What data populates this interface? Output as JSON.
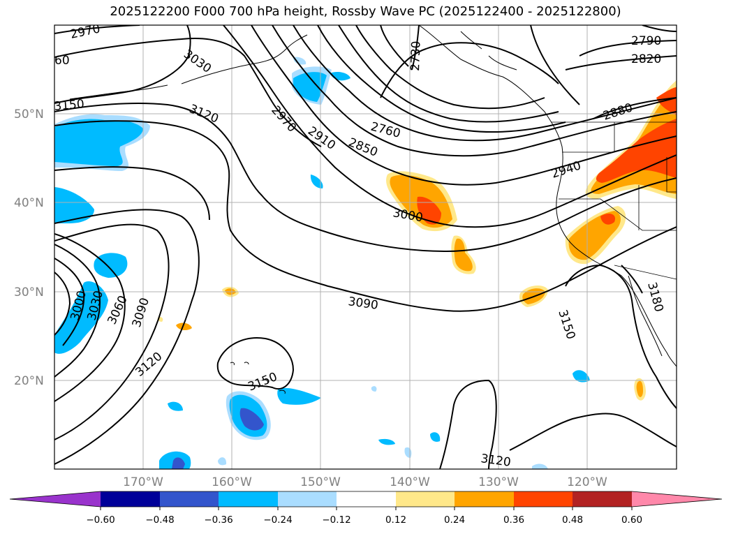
{
  "title": "2025122200 F000 700 hPa height, Rossby Wave PC (2025122400 - 2025122800)",
  "map": {
    "lon_labels": [
      "170°W",
      "160°W",
      "150°W",
      "140°W",
      "130°W",
      "120°W"
    ],
    "lat_labels": [
      "50°N",
      "40°N",
      "30°N",
      "20°N"
    ]
  },
  "contour_labels": [
    "2970",
    "60",
    "3030",
    "2730",
    "2790",
    "2820",
    "3150",
    "3120",
    "2970",
    "2910",
    "2850",
    "2760",
    "2880",
    "2940",
    "3000",
    "3000",
    "3030",
    "3060",
    "3090",
    "3090",
    "3180",
    "3150",
    "3120",
    "3150",
    "3120"
  ],
  "colorbar": {
    "colors": [
      "#9933cc",
      "#000099",
      "#3355cc",
      "#00bbff",
      "#aaddff",
      "#ffffff",
      "#ffe88a",
      "#ffa500",
      "#ff4400",
      "#b22222",
      "#ff88aa"
    ],
    "tick_labels": [
      "−0.60",
      "−0.48",
      "−0.36",
      "−0.24",
      "−0.12",
      "0.12",
      "0.24",
      "0.36",
      "0.48",
      "0.60"
    ]
  }
}
